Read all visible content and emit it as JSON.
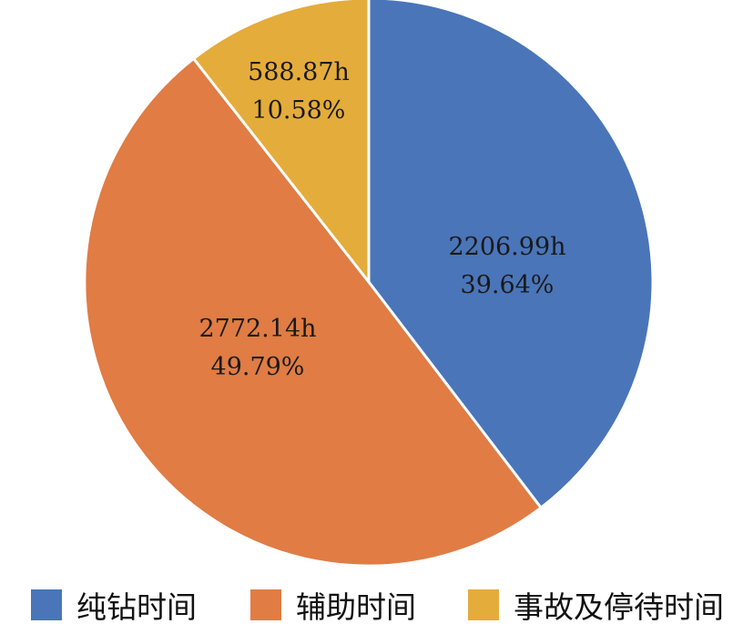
{
  "chart_data": {
    "type": "pie",
    "title": "",
    "start_angle_deg": 0,
    "direction": "clockwise",
    "legend_position": "bottom",
    "slices": [
      {
        "name": "纯钻时间",
        "value": 2206.99,
        "value_label": "2206.99h",
        "percent_label": "39.64%",
        "color": "#4a75b9"
      },
      {
        "name": "辅助时间",
        "value": 2772.14,
        "value_label": "2772.14h",
        "percent_label": "49.79%",
        "color": "#e07c44"
      },
      {
        "name": "事故及停待时间",
        "value": 588.87,
        "value_label": "588.87h",
        "percent_label": "10.58%",
        "color": "#e4ac3a"
      }
    ]
  }
}
